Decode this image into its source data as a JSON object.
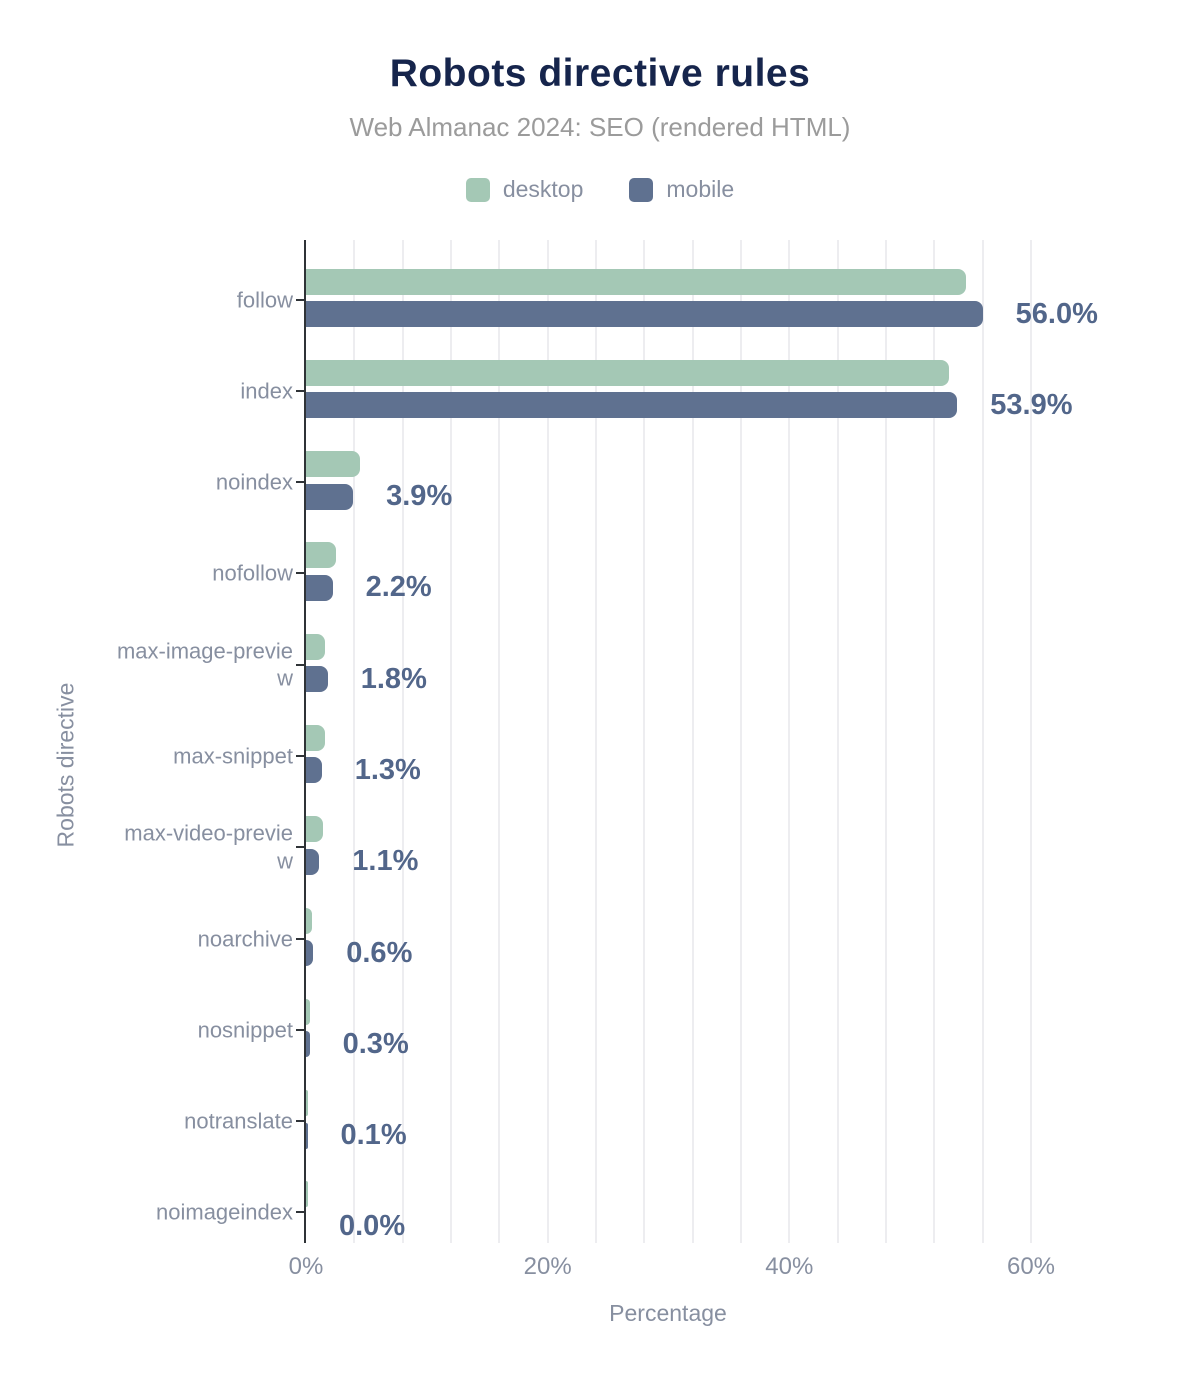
{
  "chart_data": {
    "type": "bar",
    "orientation": "horizontal",
    "title": "Robots directive rules",
    "subtitle": "Web Almanac 2024: SEO (rendered HTML)",
    "xlabel": "Percentage",
    "ylabel": "Robots directive",
    "xlim": [
      0,
      60
    ],
    "xtick_values": [
      0,
      20,
      40,
      60
    ],
    "xtick_labels": [
      "0%",
      "20%",
      "40%",
      "60%"
    ],
    "minor_gridline_step_pct": 4,
    "grid": true,
    "legend_position": "top",
    "categories": [
      "follow",
      "index",
      "noindex",
      "nofollow",
      "max-image-preview",
      "max-snippet",
      "max-video-preview",
      "noarchive",
      "nosnippet",
      "notranslate",
      "noimageindex"
    ],
    "series": [
      {
        "name": "desktop",
        "color": "#a4c8b5",
        "values": [
          54.6,
          53.2,
          4.5,
          2.5,
          1.6,
          1.6,
          1.4,
          0.5,
          0.3,
          0.1,
          0.1
        ]
      },
      {
        "name": "mobile",
        "color": "#5f7190",
        "values": [
          56.0,
          53.9,
          3.9,
          2.2,
          1.8,
          1.3,
          1.1,
          0.6,
          0.3,
          0.1,
          0.0
        ]
      }
    ],
    "data_labels": {
      "labeled_series": "mobile",
      "values": [
        "56.0%",
        "53.9%",
        "3.9%",
        "2.2%",
        "1.8%",
        "1.3%",
        "1.1%",
        "0.6%",
        "0.3%",
        "0.1%",
        "0.0%"
      ]
    }
  },
  "colors": {
    "title": "#16254c",
    "subtitle": "#9b9b9b",
    "axis_text": "#878fa0",
    "value_label": "#52668a",
    "desktop": "#a4c8b5",
    "mobile": "#5f7190",
    "axis_line": "#2f3337",
    "gridline": "#ededf0"
  }
}
